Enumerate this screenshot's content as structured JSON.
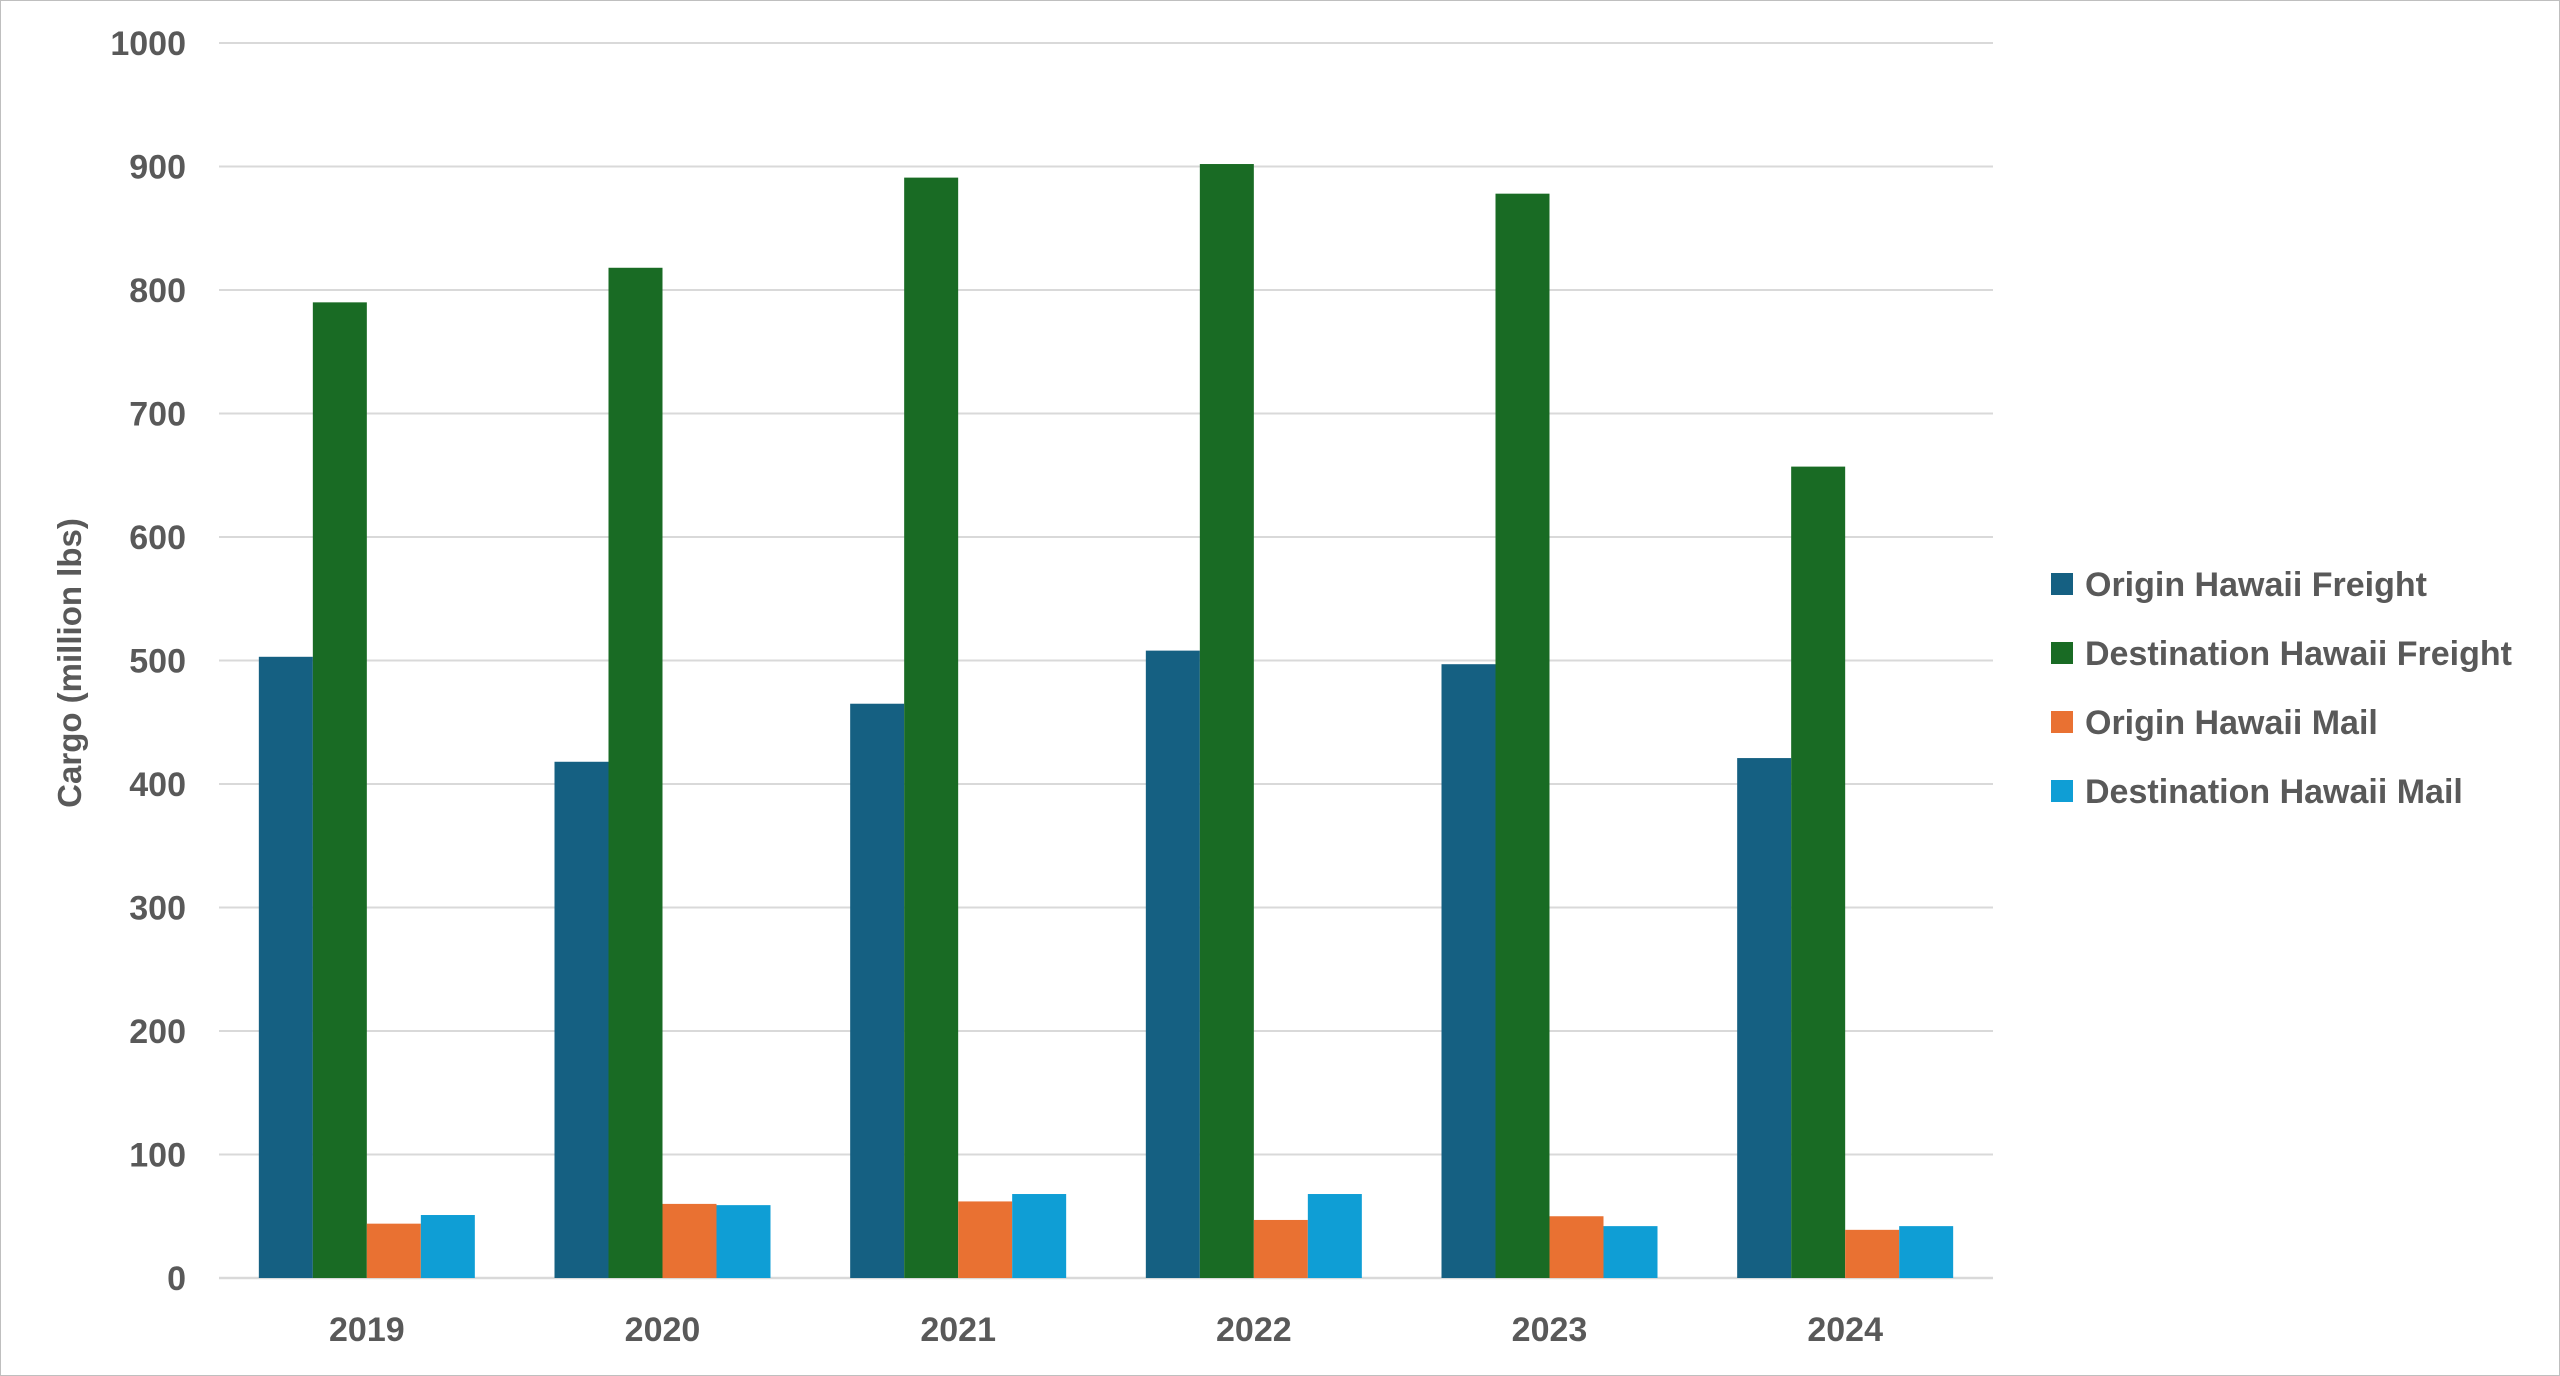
{
  "chart_data": {
    "type": "bar",
    "title": "",
    "xlabel": "",
    "ylabel": "Cargo (million lbs)",
    "ylim": [
      0,
      1000
    ],
    "yticks": [
      0,
      100,
      200,
      300,
      400,
      500,
      600,
      700,
      800,
      900,
      1000
    ],
    "grid": true,
    "legend_position": "right",
    "categories": [
      "2019",
      "2020",
      "2021",
      "2022",
      "2023",
      "2024"
    ],
    "series": [
      {
        "name": "Origin Hawaii Freight",
        "color": "#156082",
        "values": [
          503,
          418,
          465,
          508,
          497,
          421
        ]
      },
      {
        "name": "Destination Hawaii Freight",
        "color": "#196B24",
        "values": [
          790,
          818,
          891,
          902,
          878,
          657
        ]
      },
      {
        "name": "Origin Hawaii Mail",
        "color": "#E97132",
        "values": [
          44,
          60,
          62,
          47,
          50,
          39
        ]
      },
      {
        "name": "Destination Hawaii Mail",
        "color": "#0F9ED5",
        "values": [
          51,
          59,
          68,
          68,
          42,
          42
        ]
      }
    ]
  }
}
